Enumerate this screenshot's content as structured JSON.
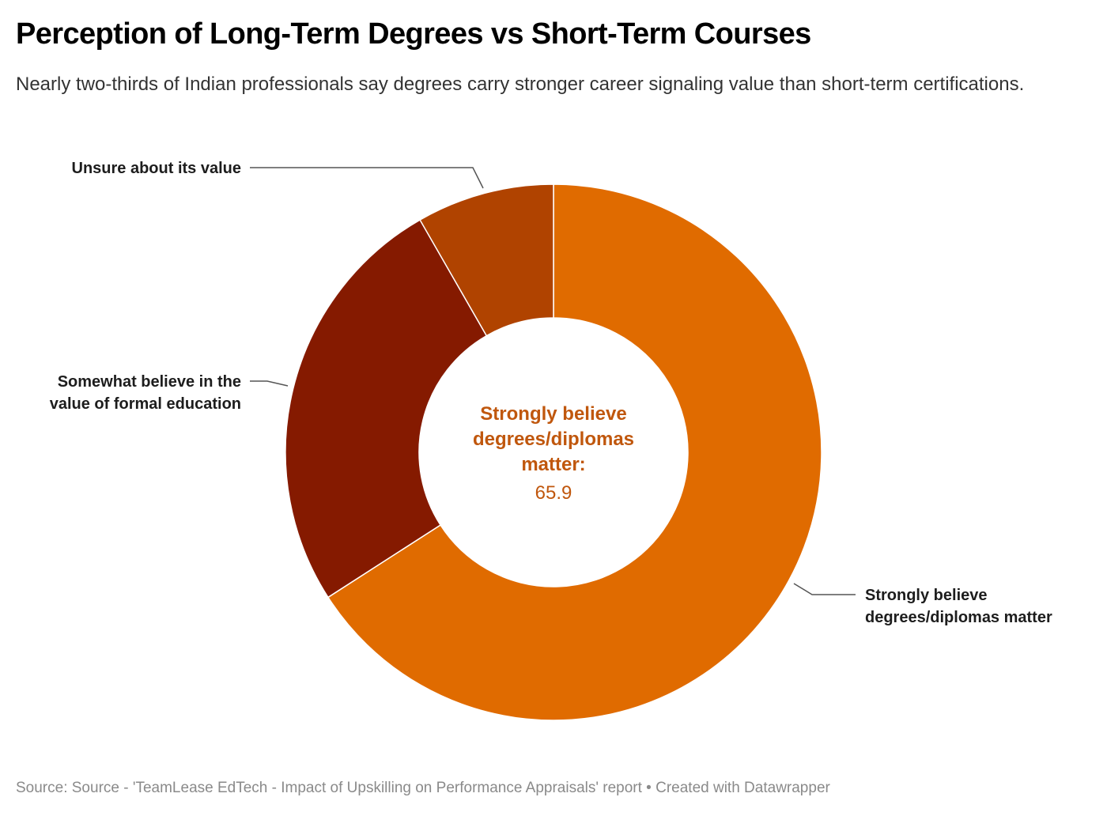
{
  "header": {
    "title": "Perception of Long-Term Degrees vs Short-Term Courses",
    "subtitle": "Nearly two-thirds of Indian professionals say degrees carry stronger career signaling value than short-term certifications."
  },
  "chart_data": {
    "type": "pie",
    "variant": "donut",
    "title": "Perception of Long-Term Degrees vs Short-Term Courses",
    "subtitle": "Nearly two-thirds of Indian professionals say degrees carry stronger career signaling value than short-term certifications.",
    "categories": [
      "Strongly believe degrees/diplomas matter",
      "Somewhat believe in the value of formal education",
      "Unsure about its value"
    ],
    "values": [
      65.9,
      25.8,
      8.3
    ],
    "colors": [
      "#e06b00",
      "#851a00",
      "#b04300"
    ],
    "center_label": "Strongly believe degrees/diplomas matter:",
    "center_value": "65.9",
    "legend": "none (direct labels)"
  },
  "labels": {
    "unsure": "Unsure about its value",
    "somewhat_line1": "Somewhat believe in the",
    "somewhat_line2": "value of formal education",
    "strongly_line1": "Strongly believe",
    "strongly_line2": "degrees/diplomas matter"
  },
  "center": {
    "line1": "Strongly believe",
    "line2": "degrees/diplomas",
    "line3": "matter:",
    "value": "65.9"
  },
  "footer": {
    "source": "Source: Source - 'TeamLease EdTech - Impact of Upskilling on Performance Appraisals' report • Created with Datawrapper"
  }
}
